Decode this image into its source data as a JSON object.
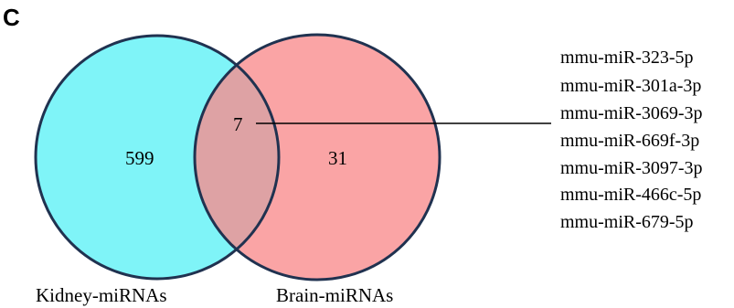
{
  "panel_label": "C",
  "colors": {
    "kidney_fill": "#7ff4f8",
    "brain_fill": "#f98a8c",
    "outline": "#203250",
    "leader_line": "#000000"
  },
  "sets": {
    "kidney": {
      "label": "Kidney-miRNAs",
      "only_count": "599"
    },
    "brain": {
      "label": "Brain-miRNAs",
      "only_count": "31"
    },
    "shared_count": "7"
  },
  "shared_mirnas": [
    "mmu-miR-323-5p",
    "mmu-miR-301a-3p",
    "mmu-miR-3069-3p",
    "mmu-miR-669f-3p",
    "mmu-miR-3097-3p",
    "mmu-miR-466c-5p",
    "mmu-miR-679-5p"
  ]
}
